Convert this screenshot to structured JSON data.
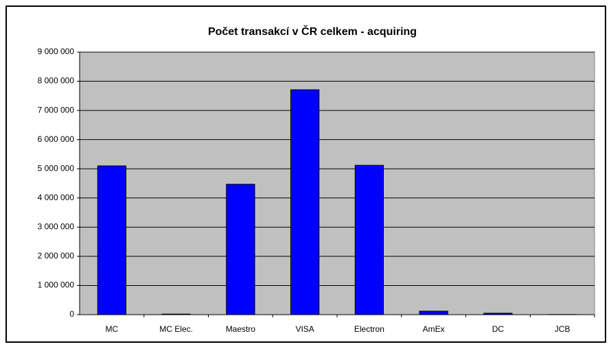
{
  "chart_data": {
    "type": "bar",
    "title": "Počet transakcí v ČR celkem - acquiring",
    "categories": [
      "MC",
      "MC Elec.",
      "Maestro",
      "VISA",
      "Electron",
      "AmEx",
      "DC",
      "JCB"
    ],
    "values": [
      5100000,
      20000,
      4470000,
      7710000,
      5120000,
      120000,
      50000,
      5000
    ],
    "color": "#0000ff",
    "ylim": [
      0,
      9000000
    ],
    "yticks": [
      0,
      {
        "value": 1000000,
        "label": "1 000 000"
      },
      {
        "value": 2000000,
        "label": "2 000 000"
      },
      {
        "value": 3000000,
        "label": "3 000 000"
      },
      {
        "value": 4000000,
        "label": "4 000 000"
      },
      {
        "value": 5000000,
        "label": "5 000 000"
      },
      {
        "value": 6000000,
        "label": "6 000 000"
      },
      {
        "value": 7000000,
        "label": "7 000 000"
      },
      {
        "value": 8000000,
        "label": "8 000 000"
      },
      {
        "value": 9000000,
        "label": "9 000 000"
      }
    ],
    "grid": true
  }
}
